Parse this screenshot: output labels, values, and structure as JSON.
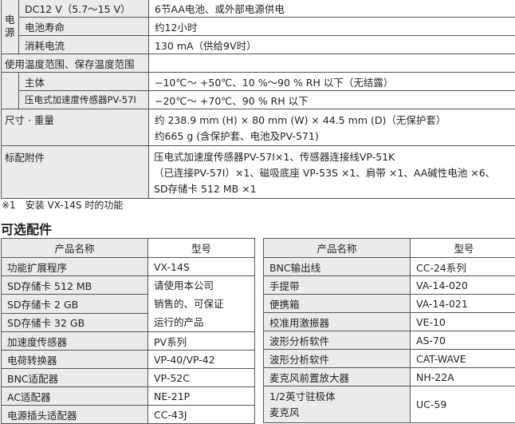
{
  "spec": {
    "power_label": "电源",
    "power_rows": [
      {
        "label": "DC12 V（5.7～15 V）",
        "value": "6节AA电池、或外部电源供电"
      },
      {
        "label": "电池寿命",
        "value": "约12小时"
      },
      {
        "label": "消耗电流",
        "value": "130 mA（供给9V时）"
      }
    ],
    "temp_label": "使用温度范围、保存温度范围",
    "temp_rows": [
      {
        "label": "主体",
        "value": "−10℃～ +50℃、10 %～90 % RH 以下（无结露）"
      },
      {
        "label": "压电式加速度传感器PV-57Ⅰ",
        "value": "−20℃～ +70℃、90 % RH 以下"
      }
    ],
    "size_label": "尺寸 · 重量",
    "size_lines": [
      "约 238.9 mm (H) × 80 mm (W) × 44.5 mm (D)（无保护套）",
      "约665 g (含保护套、电池及PV-571)"
    ],
    "acc_label": "标配附件",
    "acc_lines": [
      "压电式加速度传感器PV-57Ⅰ×1、传感器连接线VP-51K",
      "（已连接PV-57Ⅰ）×1、磁吸底座 VP-53S ×1、肩带 ×1、AA碱性电池 ×6、",
      "SD存储卡 512 MB ×1"
    ]
  },
  "footnote": "※1　安装 VX-14S 时的功能",
  "optional_heading": "可选配件",
  "headers": {
    "name": "产品名称",
    "model": "型号"
  },
  "left_rows": [
    {
      "name": "功能扩展程序",
      "model": "VX-14S"
    },
    {
      "name": "SD存储卡 512 MB"
    },
    {
      "name": "SD存储卡 2 GB"
    },
    {
      "name": "SD存储卡 32 GB"
    },
    {
      "name": "加速度传感器",
      "model": "PV系列"
    },
    {
      "name": "电荷转换器",
      "model": "VP-40/VP-42"
    },
    {
      "name": "BNC适配器",
      "model": "VP-52C"
    },
    {
      "name": "AC适配器",
      "model": "NE-21P"
    },
    {
      "name": "电源插头适配器",
      "model": "CC-43J"
    }
  ],
  "sd_model_lines": [
    "请使用本公司",
    "销售的、可保证",
    "运行的产品"
  ],
  "right_rows": [
    {
      "name": "BNC输出线",
      "model": "CC-24系列"
    },
    {
      "name": "手提带",
      "model": "VA-14-020"
    },
    {
      "name": "便携箱",
      "model": "VA-14-021"
    },
    {
      "name": "校准用激振器",
      "model": "VE-10"
    },
    {
      "name": "波形分析软件",
      "model": "AS-70"
    },
    {
      "name": "波形分析软件",
      "model": "CAT-WAVE"
    },
    {
      "name": "麦克风前置放大器",
      "model": "NH-22A"
    }
  ],
  "last_right": {
    "name_lines": [
      "1/2英寸驻极体",
      "麦克风"
    ],
    "model": "UC-59"
  }
}
